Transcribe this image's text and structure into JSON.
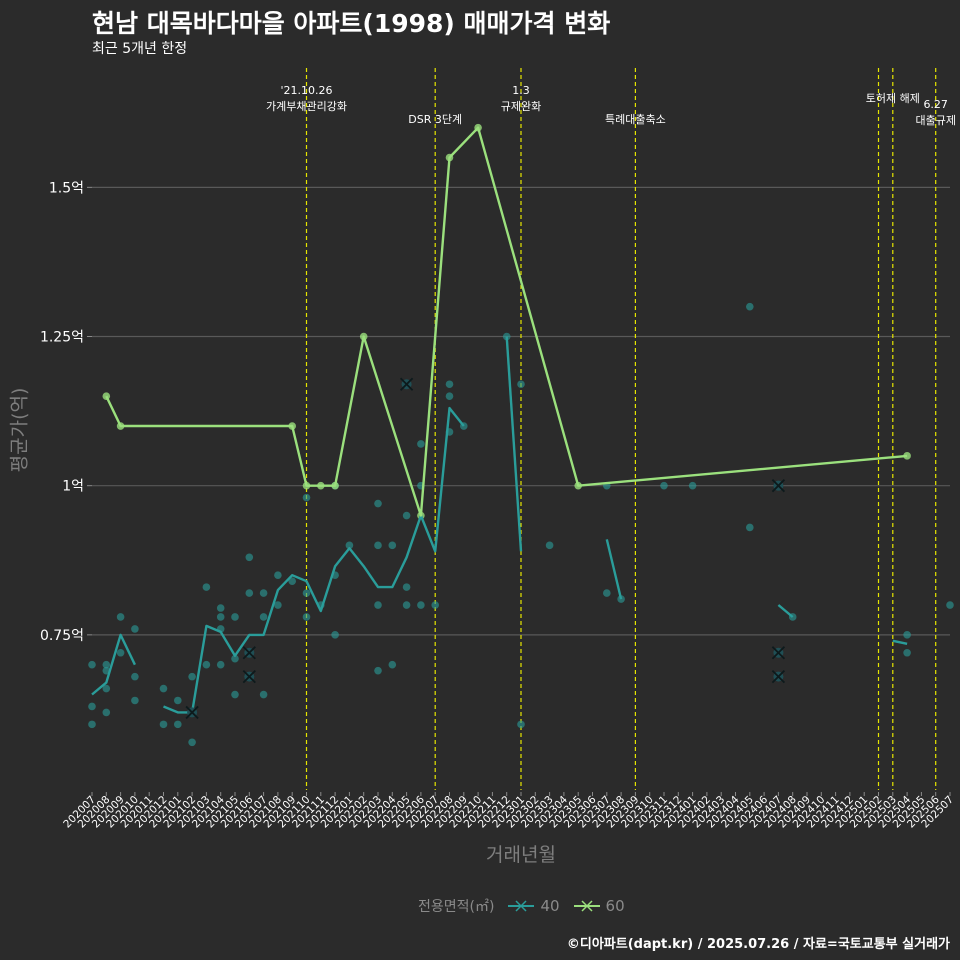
{
  "chart_data": {
    "type": "line",
    "title": "현남 대목바다마을 아파트(1998) 매매가격 변화",
    "subtitle": "최근 5개년 한정",
    "xlabel": "거래년월",
    "ylabel": "평균가(억)",
    "caption": "©디아파트(dapt.kr) / 2025.07.26 / 자료=국토교통부 실거래가",
    "legend": {
      "title": "전용면적(㎡)",
      "position": "bottom"
    },
    "categories": [
      "202007",
      "202008",
      "202009",
      "202010",
      "202011",
      "202012",
      "202101",
      "202102",
      "202103",
      "202104",
      "202105",
      "202106",
      "202107",
      "202108",
      "202109",
      "202110",
      "202111",
      "202112",
      "202201",
      "202202",
      "202203",
      "202204",
      "202205",
      "202206",
      "202207",
      "202208",
      "202209",
      "202210",
      "202211",
      "202212",
      "202301",
      "202302",
      "202303",
      "202304",
      "202305",
      "202306",
      "202307",
      "202308",
      "202309",
      "202310",
      "202311",
      "202312",
      "202401",
      "202402",
      "202403",
      "202404",
      "202405",
      "202406",
      "202407",
      "202408",
      "202409",
      "202410",
      "202411",
      "202412",
      "202501",
      "202502",
      "202503",
      "202504",
      "202505",
      "202506",
      "202507"
    ],
    "yticks": [
      {
        "value": 0.75,
        "label": "0.75억"
      },
      {
        "value": 1.0,
        "label": "1억"
      },
      {
        "value": 1.25,
        "label": "1.25억"
      },
      {
        "value": 1.5,
        "label": "1.5억"
      }
    ],
    "ylim": [
      0.49,
      1.7
    ],
    "grid": "horizontal",
    "series": [
      {
        "name": "40",
        "color": "#2a9d9a",
        "line": [
          [
            "202007",
            0.65
          ],
          [
            "202008",
            0.67
          ],
          [
            "202009",
            0.75
          ],
          [
            "202010",
            0.7
          ],
          null,
          [
            "202012",
            0.63
          ],
          [
            "202101",
            0.62
          ],
          [
            "202102",
            0.62
          ],
          [
            "202103",
            0.765
          ],
          [
            "202104",
            0.755
          ],
          [
            "202105",
            0.715
          ],
          [
            "202106",
            0.75
          ],
          [
            "202107",
            0.75
          ],
          [
            "202108",
            0.825
          ],
          [
            "202109",
            0.85
          ],
          [
            "202110",
            0.84
          ],
          [
            "202111",
            0.79
          ],
          [
            "202112",
            0.865
          ],
          [
            "202201",
            0.895
          ],
          [
            "202202",
            0.865
          ],
          [
            "202203",
            0.83
          ],
          [
            "202204",
            0.83
          ],
          [
            "202205",
            0.88
          ],
          [
            "202206",
            0.95
          ],
          [
            "202207",
            0.89
          ],
          [
            "202208",
            1.13
          ],
          [
            "202209",
            1.1
          ],
          null,
          [
            "202212",
            1.25
          ],
          [
            "202301",
            0.89
          ],
          null,
          [
            "202307",
            0.91
          ],
          [
            "202308",
            0.81
          ],
          null,
          [
            "202407",
            0.8
          ],
          [
            "202408",
            0.78
          ],
          null,
          [
            "202503",
            0.74
          ],
          [
            "202504",
            0.735
          ]
        ],
        "points": [
          [
            "202007",
            0.7
          ],
          [
            "202007",
            0.63
          ],
          [
            "202007",
            0.6
          ],
          [
            "202008",
            0.7
          ],
          [
            "202008",
            0.69
          ],
          [
            "202008",
            0.66
          ],
          [
            "202008",
            0.62
          ],
          [
            "202009",
            0.78
          ],
          [
            "202009",
            0.72
          ],
          [
            "202010",
            0.76
          ],
          [
            "202010",
            0.68
          ],
          [
            "202010",
            0.64
          ],
          [
            "202012",
            0.66
          ],
          [
            "202012",
            0.6
          ],
          [
            "202101",
            0.64
          ],
          [
            "202101",
            0.6
          ],
          [
            "202102",
            0.68
          ],
          [
            "202102",
            0.57
          ],
          [
            "202103",
            0.83
          ],
          [
            "202103",
            0.7
          ],
          [
            "202104",
            0.795
          ],
          [
            "202104",
            0.78
          ],
          [
            "202104",
            0.76
          ],
          [
            "202104",
            0.7
          ],
          [
            "202105",
            0.78
          ],
          [
            "202105",
            0.71
          ],
          [
            "202105",
            0.65
          ],
          [
            "202106",
            0.88
          ],
          [
            "202106",
            0.82
          ],
          [
            "202107",
            0.82
          ],
          [
            "202107",
            0.78
          ],
          [
            "202107",
            0.65
          ],
          [
            "202108",
            0.85
          ],
          [
            "202108",
            0.8
          ],
          [
            "202109",
            0.84
          ],
          [
            "202110",
            0.98
          ],
          [
            "202110",
            0.82
          ],
          [
            "202110",
            0.78
          ],
          [
            "202111",
            0.8
          ],
          [
            "202112",
            1.0
          ],
          [
            "202112",
            0.85
          ],
          [
            "202112",
            0.75
          ],
          [
            "202201",
            0.9
          ],
          [
            "202203",
            0.97
          ],
          [
            "202203",
            0.9
          ],
          [
            "202203",
            0.8
          ],
          [
            "202203",
            0.69
          ],
          [
            "202204",
            0.9
          ],
          [
            "202204",
            0.7
          ],
          [
            "202205",
            0.95
          ],
          [
            "202205",
            0.83
          ],
          [
            "202205",
            0.8
          ],
          [
            "202206",
            1.07
          ],
          [
            "202206",
            1.0
          ],
          [
            "202206",
            0.8
          ],
          [
            "202207",
            0.8
          ],
          [
            "202208",
            1.17
          ],
          [
            "202208",
            1.15
          ],
          [
            "202208",
            1.09
          ],
          [
            "202209",
            1.1
          ],
          [
            "202212",
            1.25
          ],
          [
            "202301",
            1.17
          ],
          [
            "202301",
            0.6
          ],
          [
            "202303",
            0.9
          ],
          [
            "202307",
            1.0
          ],
          [
            "202307",
            0.82
          ],
          [
            "202308",
            0.81
          ],
          [
            "202311",
            1.0
          ],
          [
            "202401",
            1.0
          ],
          [
            "202405",
            1.3
          ],
          [
            "202405",
            0.93
          ],
          [
            "202408",
            0.78
          ],
          [
            "202504",
            0.75
          ],
          [
            "202504",
            0.72
          ],
          [
            "202507",
            0.8
          ]
        ]
      },
      {
        "name": "60",
        "color": "#9be07d",
        "line": [
          [
            "202008",
            1.15
          ],
          [
            "202009",
            1.1
          ],
          [
            "202109",
            1.1
          ],
          [
            "202110",
            1.0
          ],
          [
            "202111",
            1.0
          ],
          [
            "202112",
            1.0
          ],
          [
            "202202",
            1.25
          ],
          [
            "202206",
            0.95
          ],
          [
            "202208",
            1.55
          ],
          [
            "202210",
            1.6
          ],
          [
            "202305",
            1.0
          ],
          [
            "202504",
            1.05
          ]
        ],
        "points": [
          [
            "202008",
            1.15
          ],
          [
            "202009",
            1.1
          ],
          [
            "202109",
            1.1
          ],
          [
            "202110",
            1.0
          ],
          [
            "202111",
            1.0
          ],
          [
            "202112",
            1.0
          ],
          [
            "202202",
            1.25
          ],
          [
            "202206",
            0.95
          ],
          [
            "202208",
            1.55
          ],
          [
            "202210",
            1.6
          ],
          [
            "202305",
            1.0
          ],
          [
            "202504",
            1.05
          ]
        ]
      }
    ],
    "cancelled_marks": [
      {
        "x": "202102",
        "y": 0.62,
        "series": "40"
      },
      {
        "x": "202106",
        "y": 0.72,
        "series": "40"
      },
      {
        "x": "202106",
        "y": 0.68,
        "series": "40"
      },
      {
        "x": "202205",
        "y": 1.17,
        "series": "40"
      },
      {
        "x": "202407",
        "y": 1.0,
        "series": "40"
      },
      {
        "x": "202407",
        "y": 0.72,
        "series": "40"
      },
      {
        "x": "202407",
        "y": 0.68,
        "series": "40"
      }
    ],
    "policy_lines": [
      {
        "x": "202110",
        "text": "'21.10.26\n가계부채관리강화",
        "row": 0
      },
      {
        "x": "202207",
        "text": "DSR 3단계",
        "row": 1
      },
      {
        "x": "202301",
        "text": "1.3\n규제완화",
        "row": 0
      },
      {
        "x": "202309",
        "text": "특례대출축소",
        "row": 1
      },
      {
        "x": "202502",
        "text": "",
        "row": 0
      },
      {
        "x": "202503",
        "text": "토허제 해제",
        "row": 0
      },
      {
        "x": "202506",
        "text": "6.27\n대출규제",
        "row": 1
      }
    ],
    "colors": {
      "background": "#2b2b2b",
      "grid": "#595959",
      "policy_line": "#e6e600",
      "tick_text": "#ffffff",
      "axis_title": "#7e7e7e"
    }
  }
}
